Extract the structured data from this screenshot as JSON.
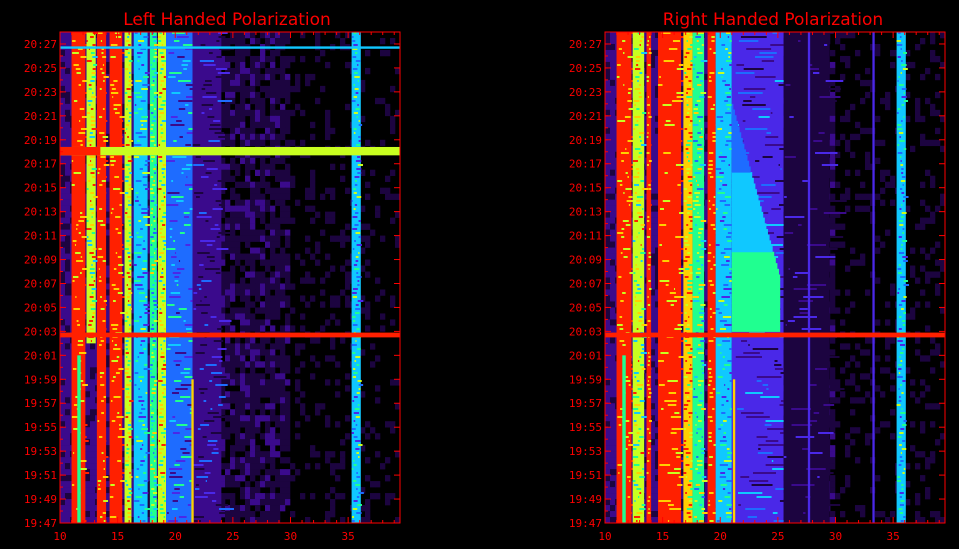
{
  "colors": {
    "background": "#000000",
    "axis": "#ff0000",
    "text": "#ff0000",
    "colormap": [
      "#000000",
      "#1c0440",
      "#3a0a8c",
      "#4a28e8",
      "#1e6cff",
      "#10c8ff",
      "#20ff90",
      "#c8ff20",
      "#ffd000",
      "#ff2000"
    ]
  },
  "chart_data": [
    {
      "type": "heatmap",
      "title": "Left Handed Polarization",
      "xlabel": "",
      "ylabel": "",
      "xlim": [
        10,
        39.5
      ],
      "x_ticks": [
        "10",
        "15",
        "20",
        "25",
        "30",
        "35"
      ],
      "y_ticks": [
        "19:47",
        "19:49",
        "19:51",
        "19:53",
        "19:55",
        "19:57",
        "19:59",
        "20:01",
        "20:03",
        "20:05",
        "20:07",
        "20:09",
        "20:11",
        "20:13",
        "20:15",
        "20:17",
        "20:19",
        "20:21",
        "20:23",
        "20:25",
        "20:27"
      ],
      "ylim": [
        "19:47",
        "20:28"
      ],
      "features": [
        {
          "kind": "band",
          "x": [
            11.0,
            12.2
          ],
          "t": [
            "19:47",
            "20:28"
          ],
          "level": 9
        },
        {
          "kind": "band",
          "x": [
            13.2,
            14.0
          ],
          "t": [
            "19:47",
            "20:28"
          ],
          "level": 9
        },
        {
          "kind": "band",
          "x": [
            14.3,
            15.4
          ],
          "t": [
            "19:47",
            "20:28"
          ],
          "level": 9
        },
        {
          "kind": "band",
          "x": [
            12.3,
            13.1
          ],
          "t": [
            "20:02",
            "20:28"
          ],
          "level": 7
        },
        {
          "kind": "band",
          "x": [
            15.6,
            16.2
          ],
          "t": [
            "19:47",
            "20:28"
          ],
          "level": 7
        },
        {
          "kind": "band",
          "x": [
            16.4,
            17.6
          ],
          "t": [
            "19:47",
            "20:28"
          ],
          "level": 5
        },
        {
          "kind": "band",
          "x": [
            17.8,
            18.4
          ],
          "t": [
            "19:47",
            "20:28"
          ],
          "level": 6
        },
        {
          "kind": "band",
          "x": [
            18.5,
            19.2
          ],
          "t": [
            "19:47",
            "20:28"
          ],
          "level": 7
        },
        {
          "kind": "band",
          "x": [
            19.2,
            21.5
          ],
          "t": [
            "19:47",
            "20:28"
          ],
          "level": 4
        },
        {
          "kind": "band",
          "x": [
            21.5,
            24.0
          ],
          "t": [
            "19:47",
            "20:28"
          ],
          "level": 2
        },
        {
          "kind": "band",
          "x": [
            35.3,
            36.1
          ],
          "t": [
            "19:47",
            "20:28"
          ],
          "level": 5
        },
        {
          "kind": "line",
          "x": [
            21.4,
            21.6
          ],
          "t": [
            "19:47",
            "19:59"
          ],
          "level": 8
        },
        {
          "kind": "line",
          "x": [
            11.5,
            11.8
          ],
          "t": [
            "19:47",
            "20:01"
          ],
          "level": 6
        },
        {
          "kind": "row",
          "x": [
            10,
            39.5
          ],
          "t": [
            "20:02.5",
            "20:02.9"
          ],
          "level": 9
        },
        {
          "kind": "row",
          "x": [
            10,
            39.5
          ],
          "t": [
            "20:17.7",
            "20:18.4"
          ],
          "level": 7
        },
        {
          "kind": "row",
          "x": [
            10,
            13.5
          ],
          "t": [
            "20:17.7",
            "20:18.4"
          ],
          "level": 9
        },
        {
          "kind": "row",
          "x": [
            10,
            39.5
          ],
          "t": [
            "20:26.6",
            "20:26.8"
          ],
          "level": 5
        }
      ]
    },
    {
      "type": "heatmap",
      "title": "Right Handed Polarization",
      "xlabel": "",
      "ylabel": "",
      "xlim": [
        10,
        39.5
      ],
      "x_ticks": [
        "10",
        "15",
        "20",
        "25",
        "30",
        "35"
      ],
      "y_ticks": [
        "19:47",
        "19:49",
        "19:51",
        "19:53",
        "19:55",
        "19:57",
        "19:59",
        "20:01",
        "20:03",
        "20:05",
        "20:07",
        "20:09",
        "20:11",
        "20:13",
        "20:15",
        "20:17",
        "20:19",
        "20:21",
        "20:23",
        "20:25",
        "20:27"
      ],
      "ylim": [
        "19:47",
        "20:28"
      ],
      "features": [
        {
          "kind": "band",
          "x": [
            11.0,
            12.3
          ],
          "t": [
            "19:47",
            "20:28"
          ],
          "level": 9
        },
        {
          "kind": "band",
          "x": [
            13.6,
            14.0
          ],
          "t": [
            "19:47",
            "20:28"
          ],
          "level": 9
        },
        {
          "kind": "band",
          "x": [
            14.6,
            16.6
          ],
          "t": [
            "19:47",
            "20:28"
          ],
          "level": 9
        },
        {
          "kind": "band",
          "x": [
            12.4,
            13.4
          ],
          "t": [
            "19:47",
            "20:28"
          ],
          "level": 7
        },
        {
          "kind": "band",
          "x": [
            16.8,
            17.6
          ],
          "t": [
            "19:47",
            "20:28"
          ],
          "level": 8
        },
        {
          "kind": "band",
          "x": [
            17.6,
            18.6
          ],
          "t": [
            "19:47",
            "20:28"
          ],
          "level": 6
        },
        {
          "kind": "band",
          "x": [
            18.9,
            19.6
          ],
          "t": [
            "19:47",
            "20:28"
          ],
          "level": 9
        },
        {
          "kind": "band",
          "x": [
            19.6,
            21.0
          ],
          "t": [
            "19:47",
            "20:28"
          ],
          "level": 5
        },
        {
          "kind": "band",
          "x": [
            21.0,
            25.5
          ],
          "t": [
            "19:47",
            "20:28"
          ],
          "level": 3
        },
        {
          "kind": "band",
          "x": [
            25.5,
            29.5
          ],
          "t": [
            "19:47",
            "20:28"
          ],
          "level": 1
        },
        {
          "kind": "band",
          "x": [
            35.3,
            36.1
          ],
          "t": [
            "19:47",
            "20:28"
          ],
          "level": 5
        },
        {
          "kind": "line",
          "x": [
            21.1,
            21.3
          ],
          "t": [
            "19:47",
            "19:59"
          ],
          "level": 8
        },
        {
          "kind": "line",
          "x": [
            11.5,
            11.8
          ],
          "t": [
            "19:47",
            "20:01"
          ],
          "level": 6
        },
        {
          "kind": "line",
          "x": [
            33.2,
            33.4
          ],
          "t": [
            "19:47",
            "20:28"
          ],
          "level": 3
        },
        {
          "kind": "line",
          "x": [
            27.6,
            27.8
          ],
          "t": [
            "19:47",
            "20:28"
          ],
          "level": 3
        },
        {
          "kind": "burst",
          "x_start": 21.0,
          "x_end": 25.2,
          "t": [
            "20:03",
            "20:22"
          ],
          "level": 6
        },
        {
          "kind": "row",
          "x": [
            10,
            39.5
          ],
          "t": [
            "20:02.5",
            "20:02.9"
          ],
          "level": 9
        }
      ]
    }
  ]
}
